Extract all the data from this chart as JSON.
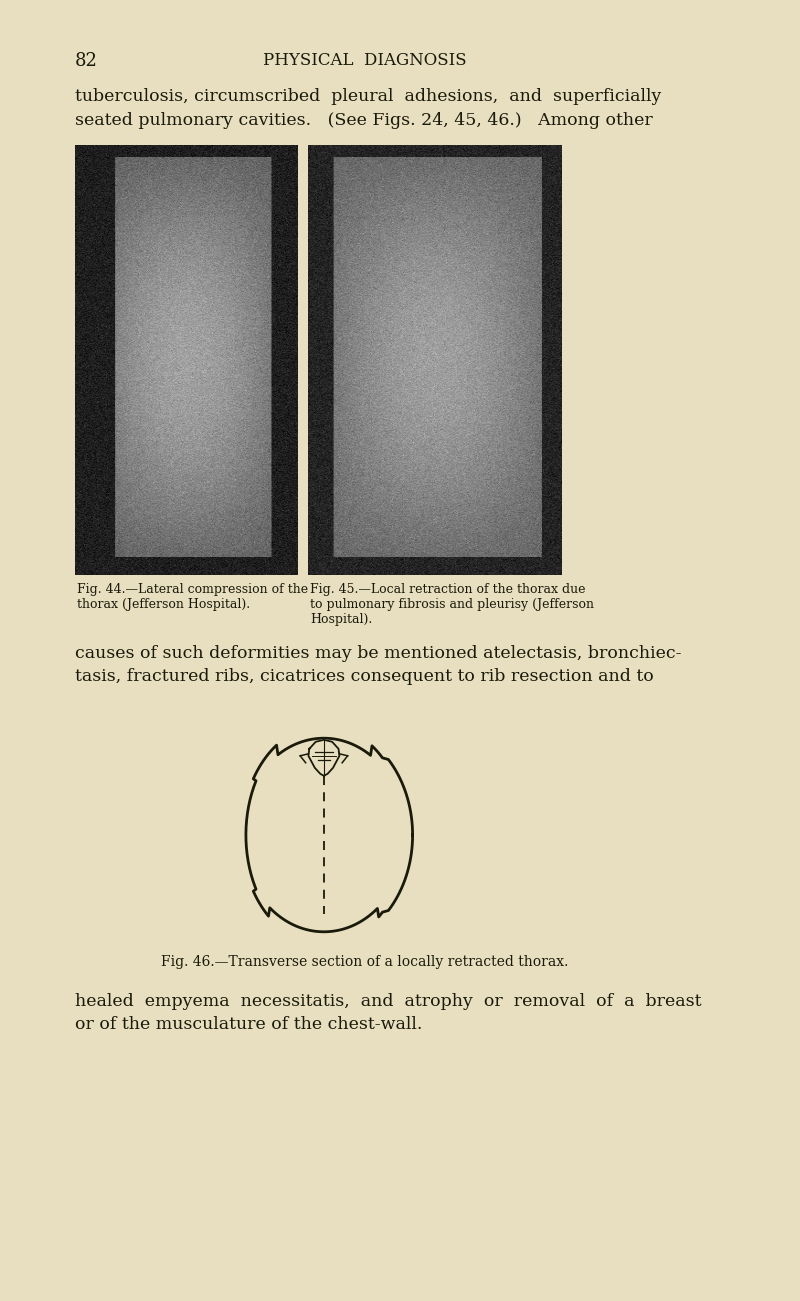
{
  "bg_color": "#e8dfc0",
  "page_number": "82",
  "header_title": "PHYSICAL  DIAGNOSIS",
  "text_color": "#1a1a0a",
  "line1": "tuberculosis, circumscribed  pleural  adhesions,  and  superficially",
  "line2": "seated pulmonary cavities.   (See Figs. 24, 45, 46.)   Among other",
  "fig44_caption_line1": "Fig. 44.—Lateral compression of the",
  "fig44_caption_line2": "thorax (Jefferson Hospital).",
  "fig45_caption_line1": "Fig. 45.—Local retraction of the thorax due",
  "fig45_caption_line2": "to pulmonary fibrosis and pleurisy (Jefferson",
  "fig45_caption_line3": "Hospital).",
  "causes_line1": "causes of such deformities may be mentioned atelectasis, bronchiec-",
  "causes_line2": "tasis, fractured ribs, cicatrices consequent to rib resection and to",
  "fig46_caption": "Fig. 46.—Transverse section of a locally retracted thorax.",
  "healed_line1": "healed  empyema  necessitatis,  and  atrophy  or  removal  of  a  breast",
  "healed_line2": "or of the musculature of the chest-wall."
}
